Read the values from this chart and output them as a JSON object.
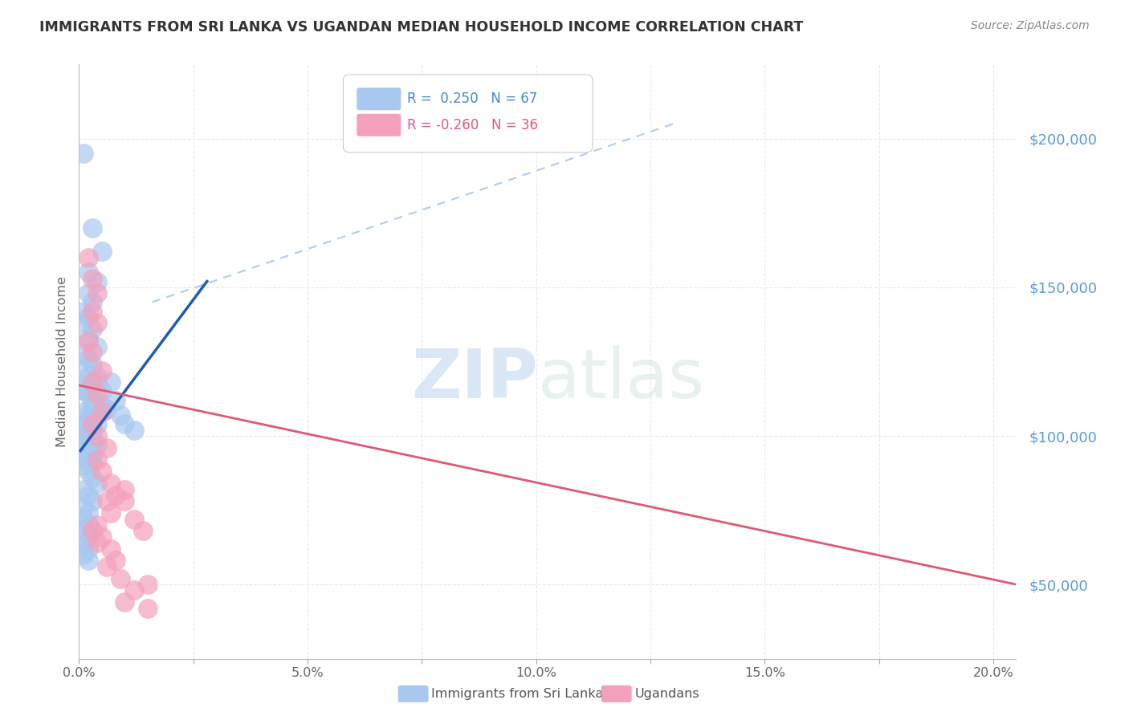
{
  "title": "IMMIGRANTS FROM SRI LANKA VS UGANDAN MEDIAN HOUSEHOLD INCOME CORRELATION CHART",
  "source": "Source: ZipAtlas.com",
  "ylabel": "Median Household Income",
  "yticks": [
    50000,
    100000,
    150000,
    200000
  ],
  "ytick_labels": [
    "$50,000",
    "$100,000",
    "$150,000",
    "$200,000"
  ],
  "xlim": [
    0.0,
    0.205
  ],
  "ylim": [
    25000,
    225000
  ],
  "watermark_zip": "ZIP",
  "watermark_atlas": "atlas",
  "series1_color": "#a8c8f0",
  "series2_color": "#f4a0bc",
  "series1_edge": "#7ab0e0",
  "series2_edge": "#e8708c",
  "trendline1_color": "#1e5cb0",
  "trendline2_color": "#e05878",
  "dashed_line_color": "#b0ccee",
  "sri_lanka_points": [
    [
      0.001,
      195000
    ],
    [
      0.003,
      170000
    ],
    [
      0.005,
      162000
    ],
    [
      0.002,
      155000
    ],
    [
      0.004,
      152000
    ],
    [
      0.002,
      148000
    ],
    [
      0.003,
      145000
    ],
    [
      0.001,
      142000
    ],
    [
      0.002,
      140000
    ],
    [
      0.001,
      138000
    ],
    [
      0.003,
      136000
    ],
    [
      0.002,
      133000
    ],
    [
      0.004,
      130000
    ],
    [
      0.001,
      128000
    ],
    [
      0.002,
      126000
    ],
    [
      0.003,
      124000
    ],
    [
      0.001,
      122000
    ],
    [
      0.002,
      120000
    ],
    [
      0.004,
      118000
    ],
    [
      0.001,
      116000
    ],
    [
      0.002,
      114000
    ],
    [
      0.003,
      112000
    ],
    [
      0.005,
      110000
    ],
    [
      0.001,
      108000
    ],
    [
      0.002,
      107000
    ],
    [
      0.003,
      106000
    ],
    [
      0.004,
      104000
    ],
    [
      0.001,
      103000
    ],
    [
      0.002,
      102000
    ],
    [
      0.003,
      101000
    ],
    [
      0.001,
      100000
    ],
    [
      0.002,
      99000
    ],
    [
      0.003,
      98000
    ],
    [
      0.004,
      97000
    ],
    [
      0.001,
      96000
    ],
    [
      0.002,
      95000
    ],
    [
      0.003,
      94000
    ],
    [
      0.001,
      93000
    ],
    [
      0.002,
      92000
    ],
    [
      0.003,
      91000
    ],
    [
      0.001,
      90000
    ],
    [
      0.002,
      88000
    ],
    [
      0.003,
      86000
    ],
    [
      0.004,
      84000
    ],
    [
      0.001,
      82000
    ],
    [
      0.002,
      80000
    ],
    [
      0.003,
      78000
    ],
    [
      0.001,
      76000
    ],
    [
      0.002,
      74000
    ],
    [
      0.001,
      72000
    ],
    [
      0.002,
      70000
    ],
    [
      0.001,
      68000
    ],
    [
      0.002,
      66000
    ],
    [
      0.001,
      64000
    ],
    [
      0.002,
      62000
    ],
    [
      0.001,
      60000
    ],
    [
      0.002,
      58000
    ],
    [
      0.007,
      118000
    ],
    [
      0.008,
      112000
    ],
    [
      0.009,
      107000
    ],
    [
      0.01,
      104000
    ],
    [
      0.012,
      102000
    ],
    [
      0.005,
      115000
    ],
    [
      0.006,
      109000
    ],
    [
      0.004,
      120000
    ],
    [
      0.003,
      110000
    ],
    [
      0.002,
      105000
    ],
    [
      0.001,
      115000
    ]
  ],
  "ugandan_points": [
    [
      0.002,
      160000
    ],
    [
      0.003,
      153000
    ],
    [
      0.004,
      148000
    ],
    [
      0.003,
      142000
    ],
    [
      0.004,
      138000
    ],
    [
      0.002,
      132000
    ],
    [
      0.003,
      128000
    ],
    [
      0.005,
      122000
    ],
    [
      0.003,
      118000
    ],
    [
      0.004,
      114000
    ],
    [
      0.005,
      108000
    ],
    [
      0.003,
      104000
    ],
    [
      0.004,
      100000
    ],
    [
      0.006,
      96000
    ],
    [
      0.004,
      92000
    ],
    [
      0.005,
      88000
    ],
    [
      0.007,
      84000
    ],
    [
      0.008,
      80000
    ],
    [
      0.006,
      78000
    ],
    [
      0.007,
      74000
    ],
    [
      0.004,
      70000
    ],
    [
      0.005,
      66000
    ],
    [
      0.007,
      62000
    ],
    [
      0.008,
      58000
    ],
    [
      0.003,
      68000
    ],
    [
      0.004,
      64000
    ],
    [
      0.01,
      82000
    ],
    [
      0.01,
      78000
    ],
    [
      0.012,
      72000
    ],
    [
      0.014,
      68000
    ],
    [
      0.01,
      44000
    ],
    [
      0.015,
      42000
    ],
    [
      0.009,
      52000
    ],
    [
      0.015,
      50000
    ],
    [
      0.006,
      56000
    ],
    [
      0.012,
      48000
    ]
  ],
  "trendline1_x": [
    0.0003,
    0.028
  ],
  "trendline1_y": [
    95000,
    152000
  ],
  "trendline2_x": [
    0.0,
    0.205
  ],
  "trendline2_y": [
    117000,
    50000
  ],
  "dashed_line_x": [
    0.016,
    0.13
  ],
  "dashed_line_y": [
    145000,
    205000
  ],
  "background_color": "#ffffff",
  "grid_color": "#dde8f0"
}
